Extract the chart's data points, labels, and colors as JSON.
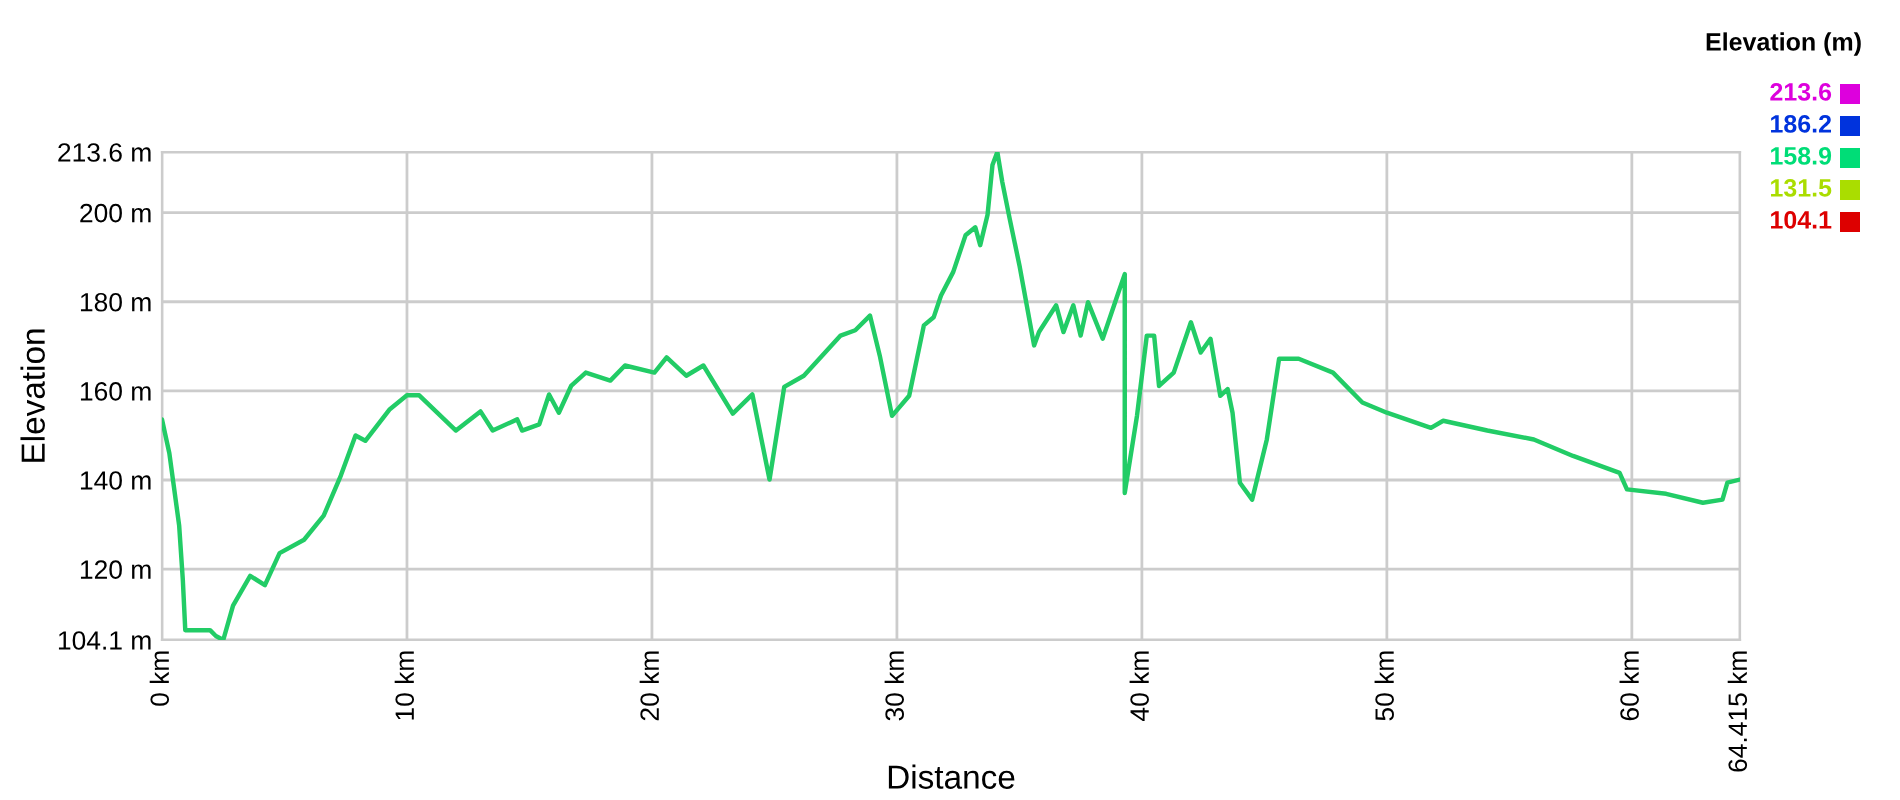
{
  "chart_data": {
    "type": "line",
    "xlabel": "Distance",
    "ylabel": "Elevation",
    "clabel": "Elevation (m)",
    "annotations": [
      "213.6",
      "186.2",
      "158.9",
      "131.5",
      "104.1"
    ],
    "colors": [
      "#dd00dd",
      "#0033dd",
      "#00dd77",
      "#aadd00",
      "#dd0000"
    ],
    "xlim": [
      0,
      64.415
    ],
    "xticks": [
      {
        "value": 0,
        "label": "0 km"
      },
      {
        "value": 10,
        "label": "10 km"
      },
      {
        "value": 20,
        "label": "20 km"
      },
      {
        "value": 30,
        "label": "30 km"
      },
      {
        "value": 40,
        "label": "40 km"
      },
      {
        "value": 50,
        "label": "50 km"
      },
      {
        "value": 60,
        "label": "60 km"
      },
      {
        "value": 64.415,
        "label": "64.415 km"
      }
    ],
    "ylim": [
      104.1,
      213.6
    ],
    "yticks": [
      {
        "value": 104.1,
        "label": "104.1 m"
      },
      {
        "value": 120,
        "label": "120 m"
      },
      {
        "value": 140,
        "label": "140 m"
      },
      {
        "value": 160,
        "label": "160 m"
      },
      {
        "value": 180,
        "label": "180 m"
      },
      {
        "value": 200,
        "label": "200 m"
      },
      {
        "value": 213.6,
        "label": "213.6 m"
      }
    ],
    "grid": true,
    "marker": "none",
    "line_style": "solid",
    "series": [
      {
        "color": "#22cc66",
        "x": [
          0,
          0.3,
          0.7,
          0.85,
          0.95,
          1.96,
          2.2,
          2.5,
          2.9,
          3.6,
          4.2,
          4.8,
          5.8,
          6.6,
          7.3,
          7.9,
          8.3,
          9.3,
          10.0,
          10.5,
          12.0,
          13.0,
          13.5,
          14.5,
          14.7,
          15.4,
          15.8,
          16.2,
          16.7,
          17.3,
          18.3,
          18.9,
          20.1,
          20.6,
          21.4,
          22.1,
          23.3,
          24.1,
          24.8,
          25.4,
          26.2,
          27.7,
          28.3,
          28.9,
          29.3,
          29.8,
          30.5,
          31.1,
          31.5,
          31.8,
          32.3,
          32.8,
          33.2,
          33.4,
          33.7,
          33.9,
          34.1,
          34.3,
          34.6,
          35.0,
          35.6,
          35.8,
          36.5,
          36.8,
          37.2,
          37.5,
          37.8,
          38.4,
          39.0,
          39.3,
          39.3,
          39.8,
          40.2,
          40.5,
          40.7,
          41.3,
          42.0,
          42.4,
          42.8,
          43.2,
          43.5,
          43.7,
          44.0,
          44.5,
          45.1,
          45.6,
          46.4,
          47.8,
          49.0,
          50.0,
          51.8,
          52.3,
          54.1,
          56.0,
          57.6,
          59.5,
          59.8,
          61.4,
          62.9,
          63.7,
          63.9,
          64.415
        ],
        "values": [
          153.6,
          146,
          129.8,
          117.6,
          106.3,
          106.3,
          105,
          104.1,
          111.8,
          118.5,
          116.4,
          123.6,
          126.6,
          132,
          141,
          150,
          148.8,
          155.9,
          159,
          159,
          151.1,
          155.4,
          151.1,
          153.6,
          151.1,
          152.5,
          159.2,
          155.1,
          161.1,
          164.1,
          162.3,
          165.7,
          164.1,
          167.5,
          163.4,
          165.7,
          154.9,
          159.2,
          140.1,
          160.9,
          163.4,
          172.4,
          173.6,
          176.9,
          167.9,
          154.4,
          158.9,
          174.7,
          176.5,
          181.4,
          186.7,
          194.9,
          196.7,
          192.7,
          199.5,
          210.7,
          213.6,
          206.9,
          198.7,
          188.2,
          170.2,
          173.2,
          179.2,
          173.2,
          179.2,
          172.4,
          179.9,
          171.7,
          181.4,
          186.2,
          137.1,
          154.4,
          172.4,
          172.4,
          161.1,
          164.1,
          175.4,
          168.6,
          171.7,
          158.9,
          160.4,
          155.1,
          139.4,
          135.6,
          149.1,
          167.2,
          167.2,
          164.1,
          157.4,
          155.1,
          151.7,
          153.3,
          151.1,
          149.1,
          145.4,
          141.6,
          137.9,
          136.9,
          134.9,
          135.6,
          139.4,
          140.1
        ]
      }
    ]
  }
}
